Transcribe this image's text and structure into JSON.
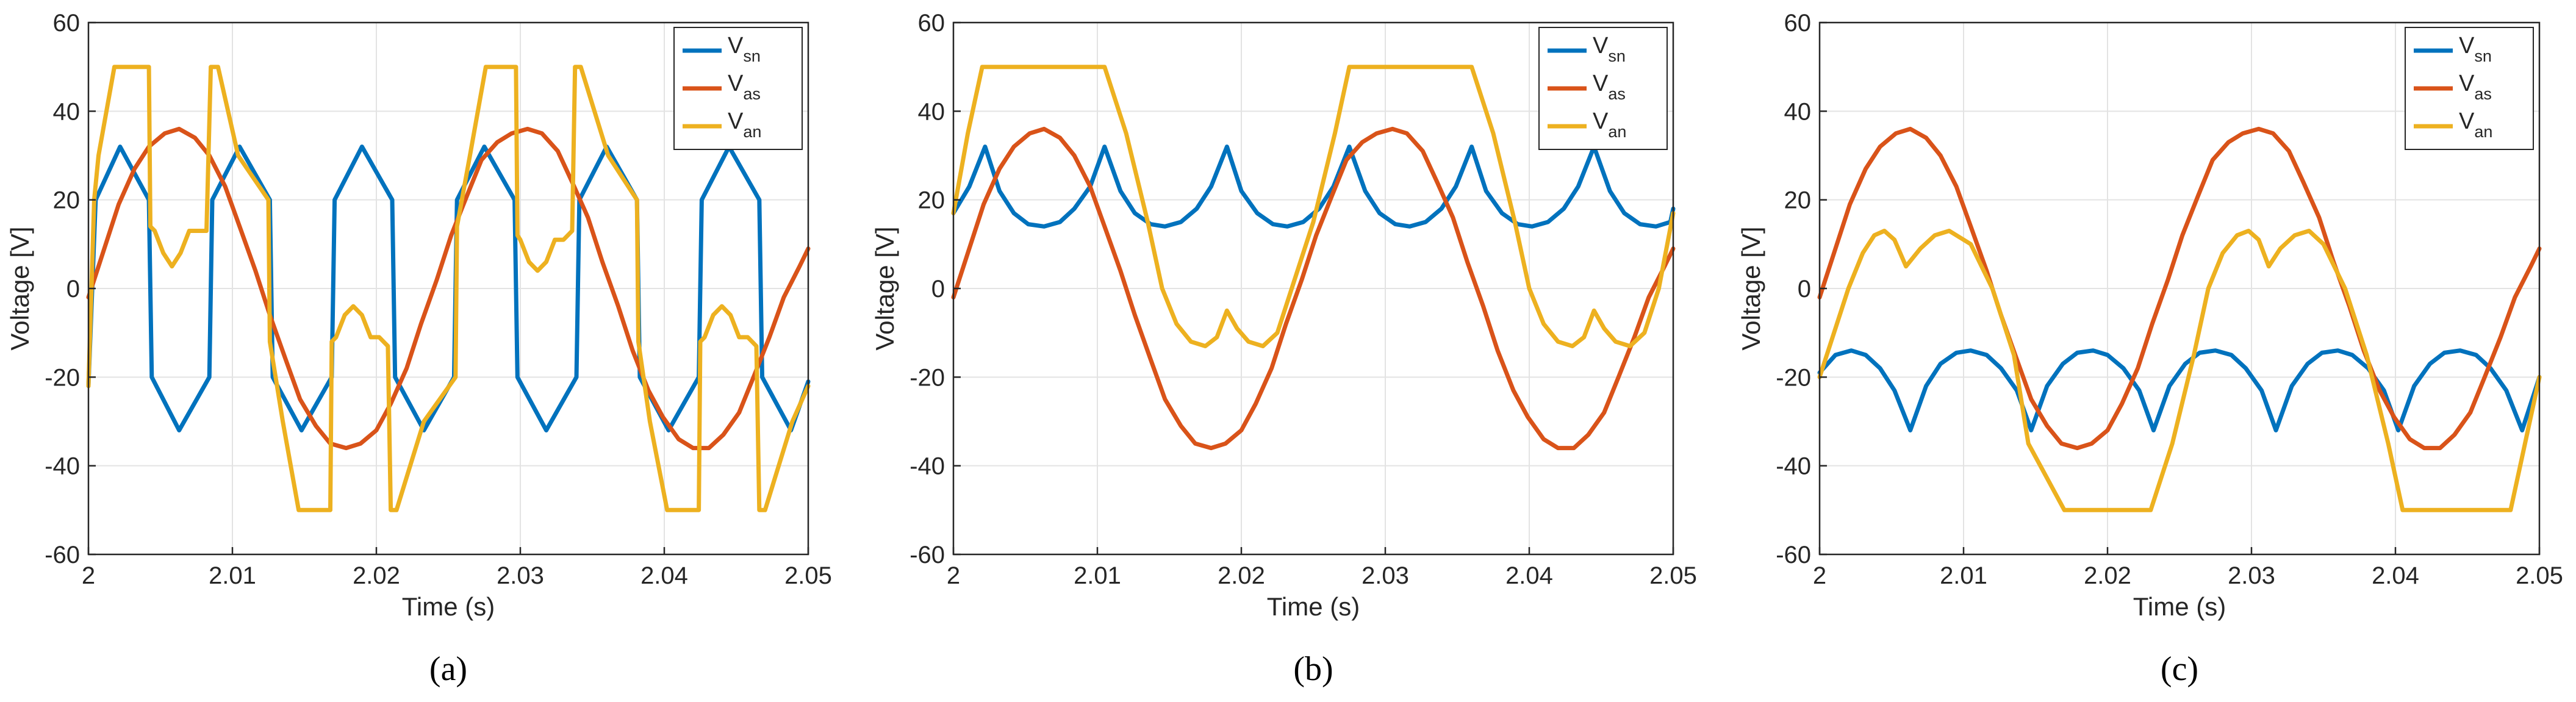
{
  "chart_data": [
    {
      "type": "line",
      "caption": "(a)",
      "xlabel": "Time (s)",
      "ylabel": "Voltage [V]",
      "xlim": [
        2,
        2.05
      ],
      "ylim": [
        -60,
        60
      ],
      "xticks": [
        "2",
        "2.01",
        "2.02",
        "2.03",
        "2.04",
        "2.05"
      ],
      "yticks": [
        "-60",
        "-40",
        "-20",
        "0",
        "20",
        "40",
        "60"
      ],
      "grid": true,
      "legend_position": "top-right",
      "series": [
        {
          "name": "V_sn",
          "label_main": "V",
          "label_sub": "sn",
          "color": "#0072BD",
          "x": [
            2.0,
            2.0005,
            2.0022,
            2.0042,
            2.0044,
            2.0063,
            2.0084,
            2.0086,
            2.0105,
            2.0126,
            2.0128,
            2.0148,
            2.0169,
            2.0171,
            2.019,
            2.0211,
            2.0213,
            2.0233,
            2.0254,
            2.0256,
            2.0275,
            2.0296,
            2.0298,
            2.0318,
            2.0339,
            2.0341,
            2.036,
            2.0381,
            2.0383,
            2.0403,
            2.0424,
            2.0426,
            2.0445,
            2.0466,
            2.0468,
            2.0488,
            2.05
          ],
          "y": [
            -22,
            20,
            32,
            20,
            -20,
            -32,
            -20,
            20,
            32,
            20,
            -20,
            -32,
            -20,
            20,
            32,
            20,
            -20,
            -32,
            -20,
            20,
            32,
            20,
            -20,
            -32,
            -20,
            20,
            32,
            20,
            -20,
            -32,
            -20,
            20,
            32,
            20,
            -20,
            -32,
            -21
          ]
        },
        {
          "name": "V_as",
          "label_main": "V",
          "label_sub": "as",
          "color": "#D95319",
          "x": [
            2.0,
            2.0011,
            2.0021,
            2.0032,
            2.0042,
            2.0053,
            2.0063,
            2.0074,
            2.0084,
            2.0095,
            2.0105,
            2.0116,
            2.0126,
            2.0137,
            2.0147,
            2.0158,
            2.0168,
            2.0179,
            2.0189,
            2.02,
            2.021,
            2.0221,
            2.0231,
            2.0242,
            2.0252,
            2.0263,
            2.0273,
            2.0284,
            2.0294,
            2.0305,
            2.0315,
            2.0326,
            2.0336,
            2.0347,
            2.0357,
            2.0368,
            2.0378,
            2.0389,
            2.0399,
            2.041,
            2.042,
            2.0431,
            2.0441,
            2.0452,
            2.0462,
            2.0473,
            2.0483,
            2.0494,
            2.05
          ],
          "y": [
            -2.0,
            9.0,
            19.0,
            27.0,
            32.0,
            35.0,
            36.0,
            34.0,
            30.0,
            23.0,
            14.0,
            4.0,
            -6.0,
            -16.0,
            -25.0,
            -31.0,
            -35.0,
            -36.0,
            -35.0,
            -32.0,
            -26.0,
            -18.0,
            -8.0,
            2.0,
            12.0,
            21.0,
            29.0,
            33.0,
            35.0,
            36.0,
            35.0,
            31.0,
            24.0,
            16.0,
            6.0,
            -4.0,
            -14.0,
            -23.0,
            -29.0,
            -34.0,
            -36.0,
            -36.0,
            -33.0,
            -28.0,
            -20.0,
            -11.0,
            -2.0,
            5.0,
            9.0
          ]
        },
        {
          "name": "V_an",
          "label_main": "V",
          "label_sub": "an",
          "color": "#EDB120",
          "x": [
            2.0,
            2.0004,
            2.0007,
            2.0018,
            2.0042,
            2.0043,
            2.0046,
            2.0052,
            2.0058,
            2.0064,
            2.007,
            2.0076,
            2.0082,
            2.0085,
            2.009,
            2.0104,
            2.0125,
            2.0126,
            2.0135,
            2.0146,
            2.0168,
            2.0169,
            2.0172,
            2.0178,
            2.0184,
            2.019,
            2.0196,
            2.0202,
            2.0208,
            2.021,
            2.0214,
            2.0233,
            2.0255,
            2.0256,
            2.0265,
            2.0276,
            2.0297,
            2.0298,
            2.03,
            2.0306,
            2.0312,
            2.0318,
            2.0324,
            2.033,
            2.0336,
            2.0338,
            2.0342,
            2.0361,
            2.0381,
            2.0382,
            2.039,
            2.0402,
            2.0424,
            2.0425,
            2.0428,
            2.0434,
            2.044,
            2.0446,
            2.0452,
            2.0458,
            2.0464,
            2.0466,
            2.047,
            2.0489,
            2.05
          ],
          "y": [
            -22,
            20,
            30,
            50,
            50,
            14,
            13,
            8,
            5,
            8,
            13,
            13,
            13,
            50,
            50,
            30,
            20,
            -12,
            -30,
            -50,
            -50,
            -12,
            -11,
            -6,
            -4,
            -6,
            -11,
            -11,
            -13,
            -50,
            -50,
            -30,
            -20,
            14,
            30,
            50,
            50,
            12,
            11,
            6,
            4,
            6,
            11,
            11,
            13,
            50,
            50,
            30,
            20,
            -12,
            -30,
            -50,
            -50,
            -12,
            -11,
            -6,
            -4,
            -6,
            -11,
            -11,
            -13,
            -50,
            -50,
            -30,
            -22
          ]
        }
      ]
    },
    {
      "type": "line",
      "caption": "(b)",
      "xlabel": "Time (s)",
      "ylabel": "Voltage [V]",
      "xlim": [
        2,
        2.05
      ],
      "ylim": [
        -60,
        60
      ],
      "xticks": [
        "2",
        "2.01",
        "2.02",
        "2.03",
        "2.04",
        "2.05"
      ],
      "yticks": [
        "-60",
        "-40",
        "-20",
        "0",
        "20",
        "40",
        "60"
      ],
      "grid": true,
      "legend_position": "top-right",
      "series": [
        {
          "name": "V_sn",
          "label_main": "V",
          "label_sub": "sn",
          "color": "#0072BD",
          "x": [
            2.0,
            2.0011,
            2.0022,
            2.0032,
            2.0042,
            2.0052,
            2.0063,
            2.0074,
            2.0084,
            2.0095,
            2.0105,
            2.0116,
            2.0126,
            2.0137,
            2.0147,
            2.0158,
            2.0169,
            2.0179,
            2.019,
            2.02,
            2.0211,
            2.0222,
            2.0232,
            2.0243,
            2.0254,
            2.0264,
            2.0275,
            2.0286,
            2.0296,
            2.0307,
            2.0317,
            2.0328,
            2.0339,
            2.0349,
            2.036,
            2.037,
            2.0381,
            2.0392,
            2.0402,
            2.0413,
            2.0424,
            2.0434,
            2.0445,
            2.0456,
            2.0466,
            2.0477,
            2.0488,
            2.0498,
            2.05
          ],
          "y": [
            17.0,
            23.0,
            32.0,
            22.0,
            17.0,
            14.5,
            14.0,
            15.0,
            18.0,
            23.0,
            32.0,
            22.0,
            17.0,
            14.5,
            14.0,
            15.0,
            18.0,
            23.0,
            32.0,
            22.0,
            17.0,
            14.5,
            14.0,
            15.0,
            18.0,
            23.0,
            32.0,
            22.0,
            17.0,
            14.5,
            14.0,
            15.0,
            18.0,
            23.0,
            32.0,
            22.0,
            17.0,
            14.5,
            14.0,
            15.0,
            18.0,
            23.0,
            32.0,
            22.0,
            17.0,
            14.5,
            14.0,
            15.0,
            18.0
          ]
        },
        {
          "name": "V_as",
          "label_main": "V",
          "label_sub": "as",
          "color": "#D95319",
          "x": [
            2.0,
            2.0011,
            2.0021,
            2.0032,
            2.0042,
            2.0053,
            2.0063,
            2.0074,
            2.0084,
            2.0095,
            2.0105,
            2.0116,
            2.0126,
            2.0137,
            2.0147,
            2.0158,
            2.0168,
            2.0179,
            2.0189,
            2.02,
            2.021,
            2.0221,
            2.0231,
            2.0242,
            2.0252,
            2.0263,
            2.0273,
            2.0284,
            2.0294,
            2.0305,
            2.0315,
            2.0326,
            2.0336,
            2.0347,
            2.0357,
            2.0368,
            2.0378,
            2.0389,
            2.0399,
            2.041,
            2.042,
            2.0431,
            2.0441,
            2.0452,
            2.0462,
            2.0473,
            2.0483,
            2.0494,
            2.05
          ],
          "y": [
            -2.0,
            9.0,
            19.0,
            27.0,
            32.0,
            35.0,
            36.0,
            34.0,
            30.0,
            23.0,
            14.0,
            4.0,
            -6.0,
            -16.0,
            -25.0,
            -31.0,
            -35.0,
            -36.0,
            -35.0,
            -32.0,
            -26.0,
            -18.0,
            -8.0,
            2.0,
            12.0,
            21.0,
            29.0,
            33.0,
            35.0,
            36.0,
            35.0,
            31.0,
            24.0,
            16.0,
            6.0,
            -4.0,
            -14.0,
            -23.0,
            -29.0,
            -34.0,
            -36.0,
            -36.0,
            -33.0,
            -28.0,
            -20.0,
            -11.0,
            -2.0,
            5.0,
            9.0
          ]
        },
        {
          "name": "V_an",
          "label_main": "V",
          "label_sub": "an",
          "color": "#EDB120",
          "x": [
            2.0,
            2.001,
            2.002,
            2.0045,
            2.007,
            2.0095,
            2.0105,
            2.012,
            2.0135,
            2.0145,
            2.0155,
            2.0165,
            2.0175,
            2.0183,
            2.019,
            2.0197,
            2.0205,
            2.0215,
            2.0225,
            2.0235,
            2.025,
            2.0265,
            2.0275,
            2.03,
            2.0325,
            2.035,
            2.036,
            2.0375,
            2.039,
            2.04,
            2.041,
            2.042,
            2.043,
            2.0438,
            2.0445,
            2.0452,
            2.046,
            2.047,
            2.048,
            2.049,
            2.05
          ],
          "y": [
            17.0,
            35.0,
            50.0,
            50.0,
            50.0,
            50.0,
            50.0,
            35.0,
            15.0,
            0.0,
            -8.0,
            -12.0,
            -13.0,
            -11.0,
            -5.0,
            -9.0,
            -12.0,
            -13.0,
            -10.0,
            0.0,
            15.0,
            35.0,
            50.0,
            50.0,
            50.0,
            50.0,
            50.0,
            35.0,
            15.0,
            0.0,
            -8.0,
            -12.0,
            -13.0,
            -11.0,
            -5.0,
            -9.0,
            -12.0,
            -13.0,
            -10.0,
            0.0,
            17.0
          ]
        }
      ]
    },
    {
      "type": "line",
      "caption": "(c)",
      "xlabel": "Time (s)",
      "ylabel": "Voltage [V]",
      "xlim": [
        2,
        2.05
      ],
      "ylim": [
        -60,
        60
      ],
      "xticks": [
        "2",
        "2.01",
        "2.02",
        "2.03",
        "2.04",
        "2.05"
      ],
      "yticks": [
        "-60",
        "-40",
        "-20",
        "0",
        "20",
        "40",
        "60"
      ],
      "grid": true,
      "legend_position": "top-right",
      "series": [
        {
          "name": "V_sn",
          "label_main": "V",
          "label_sub": "sn",
          "color": "#0072BD",
          "x": [
            2.0,
            2.0011,
            2.0022,
            2.0032,
            2.0042,
            2.0052,
            2.0063,
            2.0074,
            2.0084,
            2.0095,
            2.0105,
            2.0116,
            2.0126,
            2.0137,
            2.0147,
            2.0158,
            2.0169,
            2.0179,
            2.019,
            2.02,
            2.0211,
            2.0222,
            2.0232,
            2.0243,
            2.0254,
            2.0264,
            2.0275,
            2.0286,
            2.0296,
            2.0307,
            2.0317,
            2.0328,
            2.0339,
            2.0349,
            2.036,
            2.037,
            2.0381,
            2.0392,
            2.0402,
            2.0413,
            2.0424,
            2.0434,
            2.0445,
            2.0456,
            2.0466,
            2.0477,
            2.0488,
            2.0498,
            2.05
          ],
          "y": [
            -19.0,
            -15.0,
            -14.0,
            -15.0,
            -18.0,
            -23.0,
            -32.0,
            -22.0,
            -17.0,
            -14.5,
            -14.0,
            -15.0,
            -18.0,
            -23.0,
            -32.0,
            -22.0,
            -17.0,
            -14.5,
            -14.0,
            -15.0,
            -18.0,
            -23.0,
            -32.0,
            -22.0,
            -17.0,
            -14.5,
            -14.0,
            -15.0,
            -18.0,
            -23.0,
            -32.0,
            -22.0,
            -17.0,
            -14.5,
            -14.0,
            -15.0,
            -18.0,
            -23.0,
            -32.0,
            -22.0,
            -17.0,
            -14.5,
            -14.0,
            -15.0,
            -18.0,
            -23.0,
            -32.0,
            -22.0,
            -20.0
          ]
        },
        {
          "name": "V_as",
          "label_main": "V",
          "label_sub": "as",
          "color": "#D95319",
          "x": [
            2.0,
            2.0011,
            2.0021,
            2.0032,
            2.0042,
            2.0053,
            2.0063,
            2.0074,
            2.0084,
            2.0095,
            2.0105,
            2.0116,
            2.0126,
            2.0137,
            2.0147,
            2.0158,
            2.0168,
            2.0179,
            2.0189,
            2.02,
            2.021,
            2.0221,
            2.0231,
            2.0242,
            2.0252,
            2.0263,
            2.0273,
            2.0284,
            2.0294,
            2.0305,
            2.0315,
            2.0326,
            2.0336,
            2.0347,
            2.0357,
            2.0368,
            2.0378,
            2.0389,
            2.0399,
            2.041,
            2.042,
            2.0431,
            2.0441,
            2.0452,
            2.0462,
            2.0473,
            2.0483,
            2.0494,
            2.05
          ],
          "y": [
            -2.0,
            9.0,
            19.0,
            27.0,
            32.0,
            35.0,
            36.0,
            34.0,
            30.0,
            23.0,
            14.0,
            4.0,
            -6.0,
            -16.0,
            -25.0,
            -31.0,
            -35.0,
            -36.0,
            -35.0,
            -32.0,
            -26.0,
            -18.0,
            -8.0,
            2.0,
            12.0,
            21.0,
            29.0,
            33.0,
            35.0,
            36.0,
            35.0,
            31.0,
            24.0,
            16.0,
            6.0,
            -4.0,
            -14.0,
            -23.0,
            -29.0,
            -34.0,
            -36.0,
            -36.0,
            -33.0,
            -28.0,
            -20.0,
            -11.0,
            -2.0,
            5.0,
            9.0
          ]
        },
        {
          "name": "V_an",
          "label_main": "V",
          "label_sub": "an",
          "color": "#EDB120",
          "x": [
            2.0,
            2.001,
            2.002,
            2.003,
            2.0038,
            2.0045,
            2.0052,
            2.006,
            2.007,
            2.008,
            2.009,
            2.0105,
            2.012,
            2.0135,
            2.0145,
            2.017,
            2.0195,
            2.022,
            2.023,
            2.0245,
            2.026,
            2.027,
            2.028,
            2.029,
            2.0298,
            2.0305,
            2.0312,
            2.032,
            2.033,
            2.034,
            2.035,
            2.0365,
            2.038,
            2.0395,
            2.0405,
            2.043,
            2.0455,
            2.048,
            2.049,
            2.05
          ],
          "y": [
            -20.0,
            -10.0,
            0.0,
            8.0,
            12.0,
            13.0,
            11.0,
            5.0,
            9.0,
            12.0,
            13.0,
            10.0,
            0.0,
            -15.0,
            -35.0,
            -50.0,
            -50.0,
            -50.0,
            -50.0,
            -35.0,
            -15.0,
            0.0,
            8.0,
            12.0,
            13.0,
            11.0,
            5.0,
            9.0,
            12.0,
            13.0,
            10.0,
            0.0,
            -15.0,
            -35.0,
            -50.0,
            -50.0,
            -50.0,
            -50.0,
            -35.0,
            -20.0
          ]
        }
      ]
    }
  ]
}
